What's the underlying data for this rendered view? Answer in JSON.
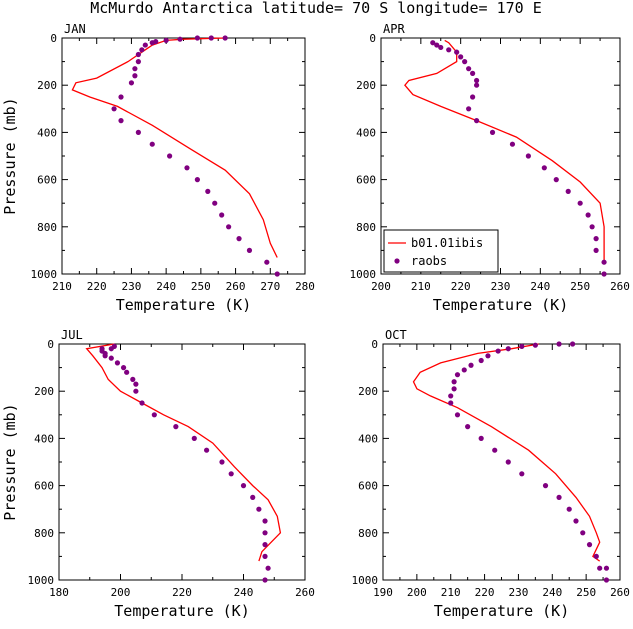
{
  "title": "McMurdo Antarctica  latitude= 70 S longitude= 170 E",
  "colors": {
    "model": "#ff0000",
    "obs": "#800080",
    "axis": "#000000"
  },
  "chart_data": [
    {
      "type": "line",
      "panel": "JAN",
      "xlabel": "Temperature (K)",
      "ylabel": "Pressure (mb)",
      "xlim": [
        210,
        280
      ],
      "ylim": [
        1000,
        0
      ],
      "x_ticks": [
        210,
        220,
        230,
        240,
        250,
        260,
        270,
        280
      ],
      "y_ticks": [
        0,
        200,
        400,
        600,
        800,
        1000
      ],
      "series": [
        {
          "name": "b01.01ibis",
          "style": "line",
          "points": [
            [
              257,
              0
            ],
            [
              245,
              5
            ],
            [
              240,
              10
            ],
            [
              238,
              20
            ],
            [
              236,
              30
            ],
            [
              234,
              50
            ],
            [
              232,
              70
            ],
            [
              229,
              100
            ],
            [
              220,
              170
            ],
            [
              214,
              190
            ],
            [
              213,
              220
            ],
            [
              218,
              250
            ],
            [
              226,
              290
            ],
            [
              236,
              370
            ],
            [
              247,
              470
            ],
            [
              257,
              560
            ],
            [
              264,
              660
            ],
            [
              268,
              770
            ],
            [
              270,
              870
            ],
            [
              272,
              930
            ]
          ]
        },
        {
          "name": "raobs",
          "style": "markers",
          "points": [
            [
              257,
              0
            ],
            [
              253,
              0
            ],
            [
              249,
              0
            ],
            [
              244,
              5
            ],
            [
              240,
              10
            ],
            [
              237,
              15
            ],
            [
              236,
              20
            ],
            [
              234,
              30
            ],
            [
              233,
              50
            ],
            [
              232,
              70
            ],
            [
              232,
              100
            ],
            [
              231,
              130
            ],
            [
              231,
              160
            ],
            [
              230,
              190
            ],
            [
              227,
              250
            ],
            [
              225,
              300
            ],
            [
              227,
              350
            ],
            [
              232,
              400
            ],
            [
              236,
              450
            ],
            [
              241,
              500
            ],
            [
              246,
              550
            ],
            [
              249,
              600
            ],
            [
              252,
              650
            ],
            [
              254,
              700
            ],
            [
              256,
              750
            ],
            [
              258,
              800
            ],
            [
              261,
              850
            ],
            [
              264,
              900
            ],
            [
              269,
              950
            ],
            [
              272,
              1000
            ]
          ]
        }
      ]
    },
    {
      "type": "line",
      "panel": "APR",
      "xlabel": "Temperature (K)",
      "ylabel": "",
      "xlim": [
        200,
        260
      ],
      "ylim": [
        1000,
        0
      ],
      "x_ticks": [
        200,
        210,
        220,
        230,
        240,
        250,
        260
      ],
      "y_ticks": [
        0,
        200,
        400,
        600,
        800,
        1000
      ],
      "series": [
        {
          "name": "b01.01ibis",
          "style": "line",
          "points": [
            [
              216,
              10
            ],
            [
              217,
              20
            ],
            [
              218,
              40
            ],
            [
              219,
              60
            ],
            [
              219,
              100
            ],
            [
              214,
              150
            ],
            [
              207,
              180
            ],
            [
              206,
              200
            ],
            [
              208,
              240
            ],
            [
              215,
              290
            ],
            [
              224,
              350
            ],
            [
              234,
              420
            ],
            [
              243,
              520
            ],
            [
              250,
              610
            ],
            [
              255,
              700
            ],
            [
              256,
              800
            ],
            [
              256,
              900
            ],
            [
              256,
              950
            ]
          ]
        },
        {
          "name": "raobs",
          "style": "markers",
          "points": [
            [
              213,
              20
            ],
            [
              214,
              30
            ],
            [
              215,
              40
            ],
            [
              217,
              50
            ],
            [
              219,
              60
            ],
            [
              220,
              80
            ],
            [
              221,
              100
            ],
            [
              222,
              130
            ],
            [
              223,
              150
            ],
            [
              224,
              180
            ],
            [
              224,
              200
            ],
            [
              223,
              250
            ],
            [
              222,
              300
            ],
            [
              224,
              350
            ],
            [
              228,
              400
            ],
            [
              233,
              450
            ],
            [
              237,
              500
            ],
            [
              241,
              550
            ],
            [
              244,
              600
            ],
            [
              247,
              650
            ],
            [
              250,
              700
            ],
            [
              252,
              750
            ],
            [
              253,
              800
            ],
            [
              254,
              850
            ],
            [
              254,
              900
            ],
            [
              256,
              950
            ],
            [
              256,
              1000
            ]
          ]
        }
      ],
      "legend": {
        "position": "bottom-left",
        "entries": [
          "b01.01ibis",
          "raobs"
        ]
      }
    },
    {
      "type": "line",
      "panel": "JUL",
      "xlabel": "Temperature (K)",
      "ylabel": "Pressure (mb)",
      "xlim": [
        180,
        260
      ],
      "ylim": [
        1000,
        0
      ],
      "x_ticks": [
        180,
        200,
        220,
        240,
        260
      ],
      "y_ticks": [
        0,
        200,
        400,
        600,
        800,
        1000
      ],
      "series": [
        {
          "name": "b01.01ibis",
          "style": "line",
          "points": [
            [
              198,
              0
            ],
            [
              189,
              20
            ],
            [
              191,
              50
            ],
            [
              194,
              100
            ],
            [
              196,
              150
            ],
            [
              200,
              200
            ],
            [
              207,
              250
            ],
            [
              214,
              300
            ],
            [
              222,
              350
            ],
            [
              230,
              420
            ],
            [
              237,
              520
            ],
            [
              243,
              600
            ],
            [
              248,
              660
            ],
            [
              251,
              730
            ],
            [
              252,
              800
            ],
            [
              249,
              840
            ],
            [
              246,
              880
            ],
            [
              245,
              920
            ]
          ]
        },
        {
          "name": "raobs",
          "style": "markers",
          "points": [
            [
              198,
              10
            ],
            [
              197,
              20
            ],
            [
              194,
              20
            ],
            [
              194,
              30
            ],
            [
              195,
              40
            ],
            [
              195,
              50
            ],
            [
              197,
              60
            ],
            [
              199,
              80
            ],
            [
              201,
              100
            ],
            [
              202,
              120
            ],
            [
              204,
              150
            ],
            [
              205,
              170
            ],
            [
              205,
              200
            ],
            [
              207,
              250
            ],
            [
              211,
              300
            ],
            [
              218,
              350
            ],
            [
              224,
              400
            ],
            [
              228,
              450
            ],
            [
              233,
              500
            ],
            [
              236,
              550
            ],
            [
              240,
              600
            ],
            [
              243,
              650
            ],
            [
              245,
              700
            ],
            [
              247,
              750
            ],
            [
              247,
              800
            ],
            [
              247,
              850
            ],
            [
              247,
              900
            ],
            [
              248,
              950
            ],
            [
              247,
              1000
            ]
          ]
        }
      ]
    },
    {
      "type": "line",
      "panel": "OCT",
      "xlabel": "Temperature (K)",
      "ylabel": "",
      "xlim": [
        190,
        260
      ],
      "ylim": [
        1000,
        0
      ],
      "x_ticks": [
        190,
        200,
        210,
        220,
        230,
        240,
        250,
        260
      ],
      "y_ticks": [
        0,
        200,
        400,
        600,
        800,
        1000
      ],
      "series": [
        {
          "name": "b01.01ibis",
          "style": "line",
          "points": [
            [
              236,
              0
            ],
            [
              228,
              20
            ],
            [
              218,
              40
            ],
            [
              207,
              80
            ],
            [
              201,
              120
            ],
            [
              199,
              160
            ],
            [
              200,
              190
            ],
            [
              204,
              220
            ],
            [
              212,
              270
            ],
            [
              222,
              350
            ],
            [
              233,
              450
            ],
            [
              241,
              550
            ],
            [
              247,
              650
            ],
            [
              251,
              730
            ],
            [
              253,
              800
            ],
            [
              254,
              840
            ],
            [
              253,
              870
            ],
            [
              252,
              900
            ],
            [
              254,
              920
            ]
          ]
        },
        {
          "name": "raobs",
          "style": "markers",
          "points": [
            [
              246,
              0
            ],
            [
              242,
              0
            ],
            [
              235,
              5
            ],
            [
              231,
              10
            ],
            [
              227,
              20
            ],
            [
              224,
              30
            ],
            [
              221,
              50
            ],
            [
              219,
              70
            ],
            [
              216,
              90
            ],
            [
              214,
              110
            ],
            [
              212,
              130
            ],
            [
              211,
              160
            ],
            [
              211,
              190
            ],
            [
              210,
              220
            ],
            [
              210,
              250
            ],
            [
              212,
              300
            ],
            [
              215,
              350
            ],
            [
              219,
              400
            ],
            [
              223,
              450
            ],
            [
              227,
              500
            ],
            [
              231,
              550
            ],
            [
              238,
              600
            ],
            [
              242,
              650
            ],
            [
              245,
              700
            ],
            [
              247,
              750
            ],
            [
              249,
              800
            ],
            [
              251,
              850
            ],
            [
              253,
              900
            ],
            [
              254,
              950
            ],
            [
              256,
              950
            ],
            [
              256,
              1000
            ]
          ]
        }
      ]
    }
  ]
}
